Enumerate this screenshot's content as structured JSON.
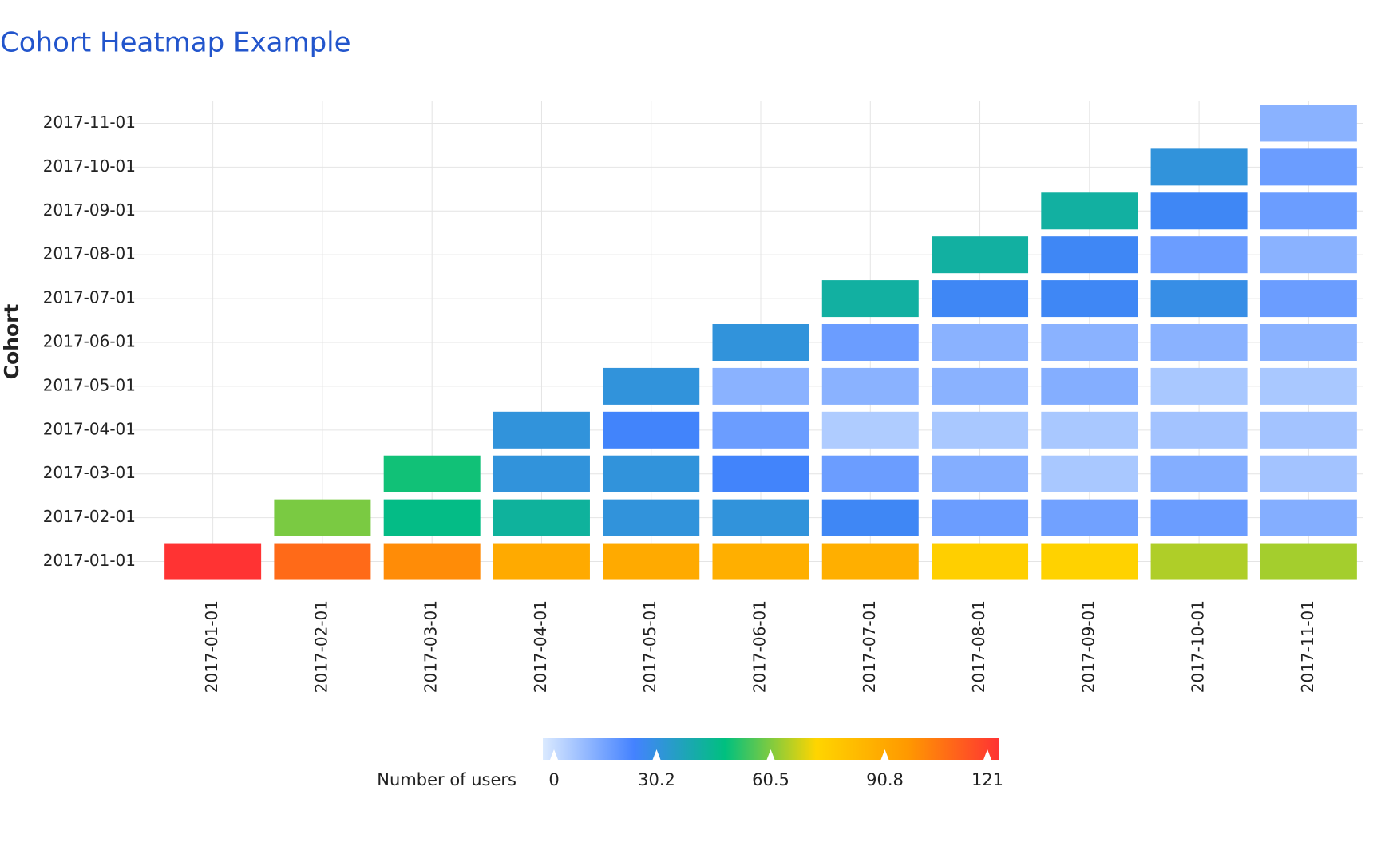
{
  "chart_data": {
    "type": "heatmap",
    "title": "Cohort Heatmap Example",
    "y_label": "Cohort",
    "x": [
      "2017-01-01",
      "2017-02-01",
      "2017-03-01",
      "2017-04-01",
      "2017-05-01",
      "2017-06-01",
      "2017-07-01",
      "2017-08-01",
      "2017-09-01",
      "2017-10-01",
      "2017-11-01"
    ],
    "y": [
      "2017-01-01",
      "2017-02-01",
      "2017-03-01",
      "2017-04-01",
      "2017-05-01",
      "2017-06-01",
      "2017-07-01",
      "2017-08-01",
      "2017-09-01",
      "2017-10-01",
      "2017-11-01"
    ],
    "values": [
      [
        121,
        108,
        100,
        90,
        90,
        88,
        88,
        75,
        74,
        65,
        64
      ],
      [
        null,
        60,
        47,
        43,
        31,
        31,
        26,
        18,
        17,
        18,
        14
      ],
      [
        null,
        null,
        50,
        31,
        31,
        25,
        18,
        14,
        8,
        14,
        9
      ],
      [
        null,
        null,
        null,
        31,
        25,
        18,
        7,
        8,
        8,
        9,
        9
      ],
      [
        null,
        null,
        null,
        null,
        31,
        13,
        13,
        13,
        14,
        8,
        8
      ],
      [
        null,
        null,
        null,
        null,
        null,
        31,
        18,
        13,
        13,
        13,
        13
      ],
      [
        null,
        null,
        null,
        null,
        null,
        null,
        42,
        26,
        26,
        29,
        18
      ],
      [
        null,
        null,
        null,
        null,
        null,
        null,
        null,
        42,
        26,
        18,
        13
      ],
      [
        null,
        null,
        null,
        null,
        null,
        null,
        null,
        null,
        42,
        26,
        18
      ],
      [
        null,
        null,
        null,
        null,
        null,
        null,
        null,
        null,
        null,
        31,
        18
      ],
      [
        null,
        null,
        null,
        null,
        null,
        null,
        null,
        null,
        null,
        null,
        13
      ]
    ],
    "colorbar_title": "Number of users",
    "zlim": [
      0,
      121
    ],
    "zticks": [
      0,
      30.2,
      60.5,
      90.8,
      121
    ],
    "colorscale": [
      "#dbeaff",
      "#4482ff",
      "#00c07f",
      "#ffd500",
      "#ff9900",
      "#ff3333"
    ],
    "grid": true
  }
}
